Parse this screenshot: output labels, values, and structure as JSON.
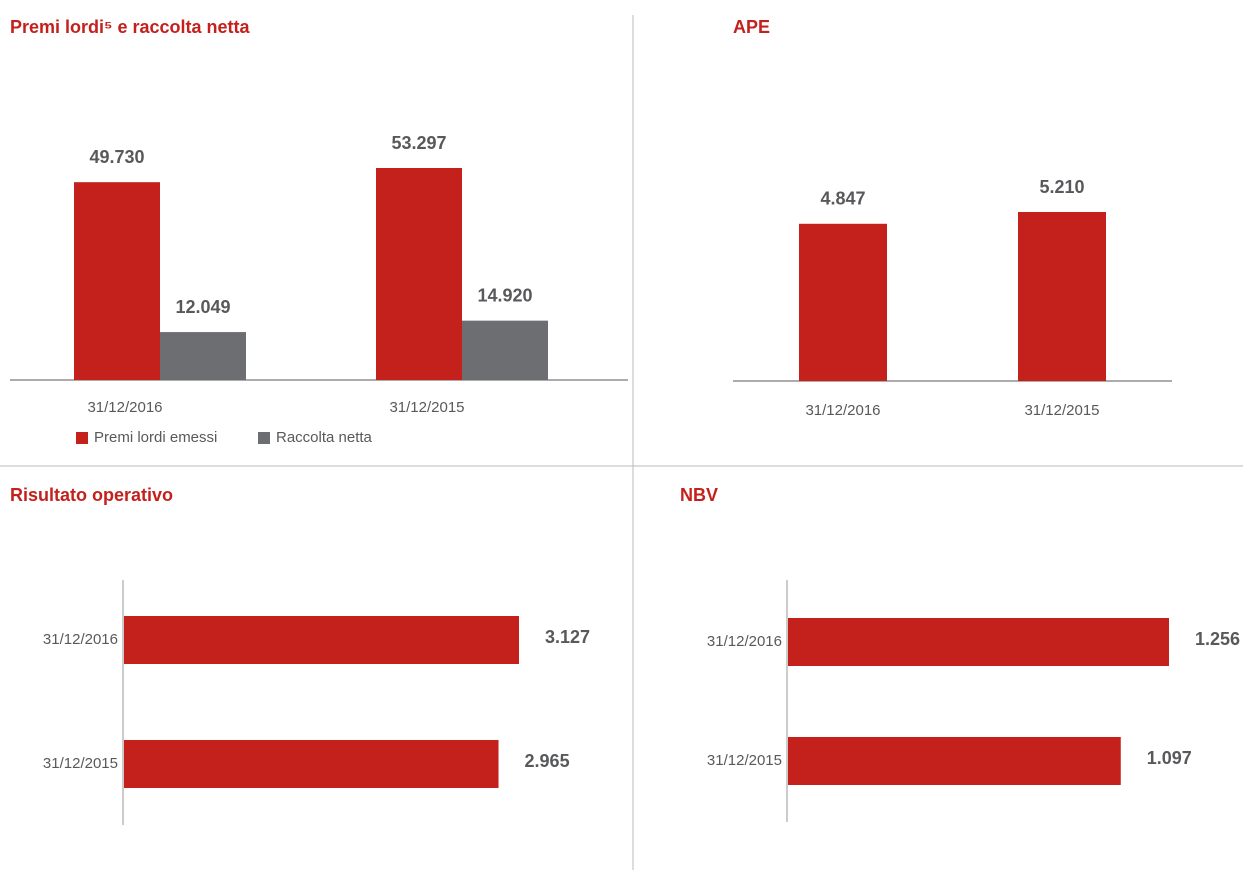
{
  "chart_data": [
    {
      "type": "bar",
      "title": "Premi lordi⁵ e raccolta netta",
      "categories": [
        "31/12/2016",
        "31/12/2015"
      ],
      "series": [
        {
          "name": "Premi lordi emessi",
          "color": "#c4211c",
          "values": [
            49730,
            53297
          ],
          "value_labels": [
            "49.730",
            "53.297"
          ]
        },
        {
          "name": "Raccolta netta",
          "color": "#6d6e71",
          "values": [
            12049,
            14920
          ],
          "value_labels": [
            "12.049",
            "14.920"
          ]
        }
      ]
    },
    {
      "type": "bar",
      "title": "APE",
      "categories": [
        "31/12/2016",
        "31/12/2015"
      ],
      "series": [
        {
          "color": "#c4211c",
          "values": [
            4847,
            5210
          ],
          "value_labels": [
            "4.847",
            "5.210"
          ]
        }
      ]
    },
    {
      "type": "barh",
      "title": "Risultato operativo",
      "categories": [
        "31/12/2016",
        "31/12/2015"
      ],
      "series": [
        {
          "color": "#c4211c",
          "values": [
            3127,
            2965
          ],
          "value_labels": [
            "3.127",
            "2.965"
          ]
        }
      ]
    },
    {
      "type": "barh",
      "title": "NBV",
      "categories": [
        "31/12/2016",
        "31/12/2015"
      ],
      "series": [
        {
          "color": "#c4211c",
          "values": [
            1256,
            1097
          ],
          "value_labels": [
            "1.256",
            "1.097"
          ]
        }
      ]
    }
  ]
}
